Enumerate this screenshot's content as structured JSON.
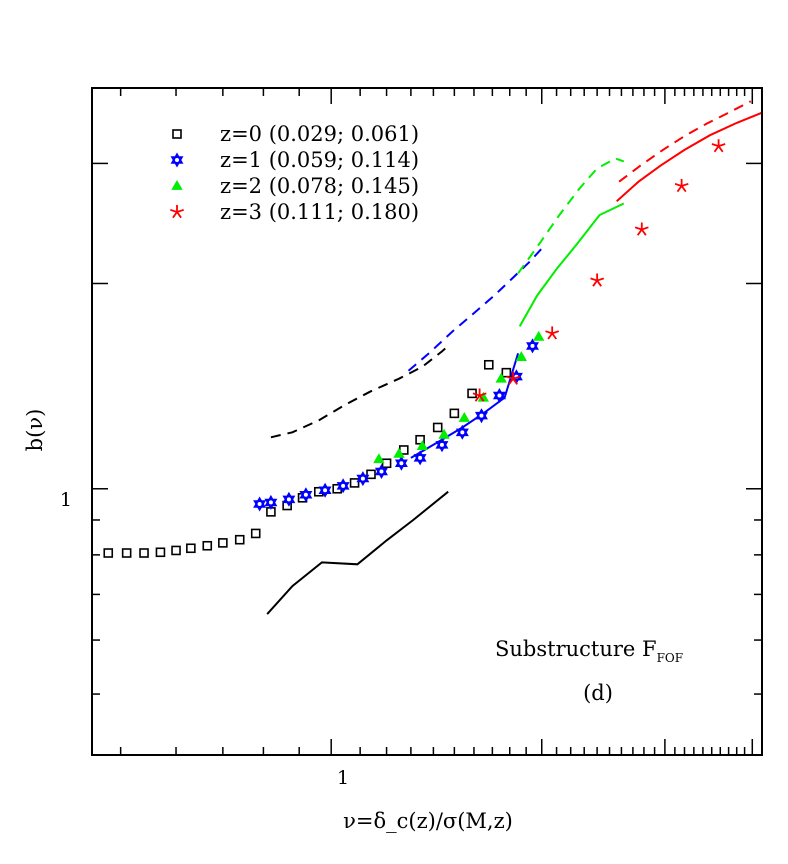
{
  "chart_data": {
    "type": "scatter",
    "xscale": "log",
    "yscale": "log",
    "xlim": [
      0.455,
      4.13
    ],
    "ylim": [
      0.407,
      3.87
    ],
    "x_tick_labels": [
      "1"
    ],
    "y_tick_labels": [
      "1"
    ],
    "xlabel": "ν=δ_c(z)/σ(M,z)",
    "ylabel": "b(ν)",
    "annotations": {
      "substructure_prefix": "Substructure F",
      "substructure_sub": "FOF",
      "panel": "(d)"
    },
    "legend": {
      "placement": "top-left",
      "entries": [
        {
          "label": "z=0 (0.029; 0.061)",
          "marker": "open-square",
          "color": "#000000"
        },
        {
          "label": "z=1 (0.059; 0.114)",
          "marker": "star-of-david",
          "color": "#0000ff"
        },
        {
          "label": "z=2 (0.078; 0.145)",
          "marker": "filled-triangle",
          "color": "#00ee00"
        },
        {
          "label": "z=3 (0.111; 0.180)",
          "marker": "asterisk",
          "color": "#ff0000"
        }
      ]
    },
    "series": [
      {
        "name": "z=0",
        "color": "#000000",
        "marker": "open-square",
        "x": [
          0.48,
          0.51,
          0.54,
          0.57,
          0.6,
          0.63,
          0.665,
          0.7,
          0.74,
          0.78,
          0.82,
          0.865,
          0.91,
          0.96,
          1.02,
          1.08,
          1.14,
          1.2,
          1.27,
          1.34,
          1.42,
          1.5,
          1.59,
          1.68,
          1.78
        ],
        "y": [
          0.805,
          0.805,
          0.805,
          0.807,
          0.812,
          0.818,
          0.825,
          0.833,
          0.842,
          0.86,
          0.925,
          0.945,
          0.97,
          0.99,
          1.0,
          1.02,
          1.05,
          1.09,
          1.14,
          1.18,
          1.23,
          1.29,
          1.38,
          1.52,
          1.48
        ]
      },
      {
        "name": "z=1",
        "color": "#0000ff",
        "marker": "star-of-david",
        "x": [
          0.79,
          0.82,
          0.87,
          0.92,
          0.98,
          1.04,
          1.11,
          1.18,
          1.26,
          1.34,
          1.44,
          1.54,
          1.64,
          1.74,
          1.84,
          1.94
        ],
        "y": [
          0.95,
          0.955,
          0.965,
          0.975,
          0.99,
          1.005,
          1.025,
          1.055,
          1.09,
          1.12,
          1.16,
          1.21,
          1.29,
          1.38,
          1.48,
          1.63
        ],
        "y_fix": [
          0.95,
          0.955,
          0.965,
          0.98,
          0.995,
          1.01,
          1.035,
          1.06,
          1.09,
          1.11,
          1.16,
          1.21,
          1.28,
          1.37,
          1.46,
          1.62
        ]
      },
      {
        "name": "z=2",
        "color": "#00ee00",
        "marker": "filled-triangle",
        "x": [
          1.17,
          1.25,
          1.35,
          1.45,
          1.55,
          1.65,
          1.75,
          1.87,
          1.98
        ],
        "y": [
          1.105,
          1.125,
          1.155,
          1.2,
          1.27,
          1.36,
          1.45,
          1.56,
          1.67
        ]
      },
      {
        "name": "z=3",
        "color": "#ff0000",
        "marker": "asterisk",
        "x": [
          1.63,
          1.82,
          2.07,
          2.4,
          2.78,
          3.17,
          3.58
        ],
        "y": [
          1.37,
          1.45,
          1.69,
          2.02,
          2.4,
          2.78,
          3.18
        ]
      }
    ],
    "lines": [
      {
        "name": "z=0 dashed",
        "color": "#000000",
        "style": "dashed",
        "x": [
          0.82,
          0.88,
          0.96,
          1.05,
          1.14,
          1.25,
          1.35,
          1.44,
          1.47
        ],
        "y": [
          1.19,
          1.21,
          1.26,
          1.33,
          1.39,
          1.45,
          1.51,
          1.59,
          1.62
        ]
      },
      {
        "name": "z=0 solid",
        "color": "#000000",
        "style": "solid",
        "x": [
          0.81,
          0.88,
          0.97,
          1.09,
          1.2,
          1.31,
          1.47
        ],
        "y": [
          0.655,
          0.72,
          0.78,
          0.775,
          0.84,
          0.9,
          0.99
        ]
      },
      {
        "name": "z=1 dashed",
        "color": "#0000ff",
        "style": "dashed",
        "x": [
          1.29,
          1.38,
          1.49,
          1.6,
          1.71,
          1.82,
          1.92,
          2.0
        ],
        "y": [
          1.49,
          1.58,
          1.7,
          1.81,
          1.92,
          2.04,
          2.15,
          2.25
        ]
      },
      {
        "name": "z=1 solid",
        "color": "#0000ff",
        "style": "solid",
        "x": [
          1.3,
          1.42,
          1.54,
          1.65,
          1.77,
          1.85
        ],
        "y": [
          1.11,
          1.17,
          1.23,
          1.29,
          1.36,
          1.58
        ]
      },
      {
        "name": "z=2 dashed",
        "color": "#00ee00",
        "style": "dashed",
        "x": [
          1.85,
          1.98,
          2.12,
          2.26,
          2.4,
          2.55,
          2.62
        ],
        "y": [
          2.07,
          2.28,
          2.52,
          2.75,
          2.95,
          3.05,
          3.02
        ]
      },
      {
        "name": "z=2 solid",
        "color": "#00ee00",
        "style": "solid",
        "x": [
          1.86,
          1.97,
          2.1,
          2.25,
          2.42,
          2.62
        ],
        "y": [
          1.73,
          1.92,
          2.1,
          2.29,
          2.52,
          2.62
        ]
      },
      {
        "name": "z=3 dashed",
        "color": "#ff0000",
        "style": "dashed",
        "x": [
          2.58,
          2.77,
          2.98,
          3.2,
          3.44,
          3.7,
          3.98
        ],
        "y": [
          2.82,
          2.98,
          3.14,
          3.29,
          3.43,
          3.56,
          3.7
        ]
      },
      {
        "name": "z=3 solid",
        "color": "#ff0000",
        "style": "solid",
        "x": [
          2.56,
          2.75,
          2.96,
          3.2,
          3.48,
          3.8,
          4.13
        ],
        "y": [
          2.64,
          2.82,
          2.98,
          3.14,
          3.3,
          3.44,
          3.56
        ]
      }
    ]
  }
}
